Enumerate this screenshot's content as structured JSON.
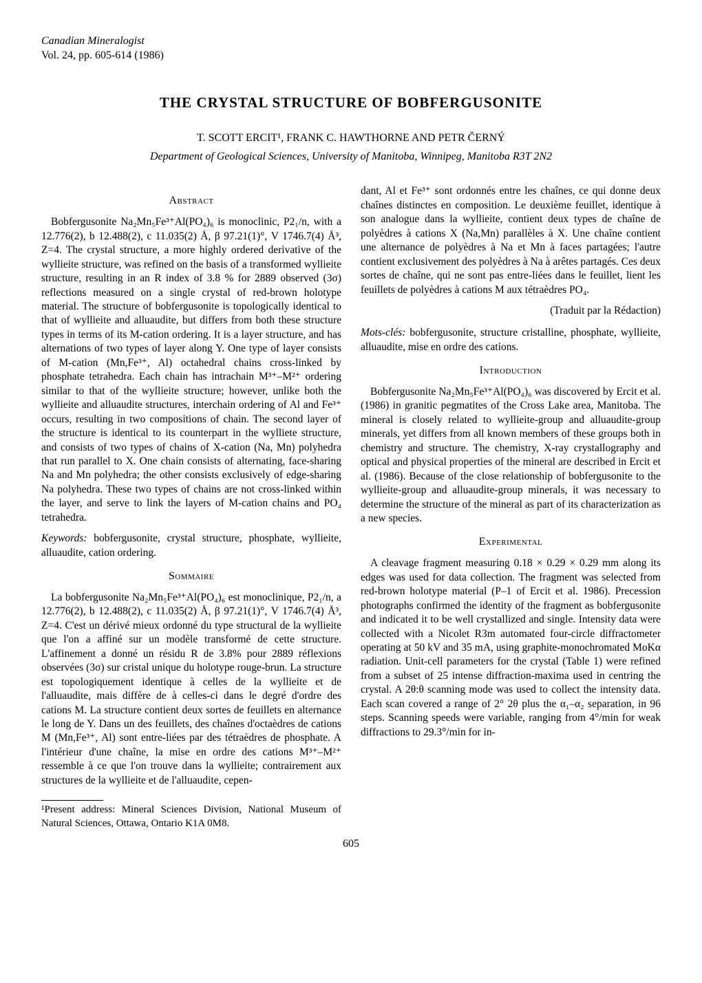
{
  "header": {
    "journal": "Canadian Mineralogist",
    "volume": "Vol. 24, pp. 605-614 (1986)"
  },
  "title": "THE CRYSTAL STRUCTURE OF BOBFERGUSONITE",
  "authors": "T. SCOTT ERCIT¹, FRANK C. HAWTHORNE AND PETR ČERNÝ",
  "affiliation": "Department of Geological Sciences, University of Manitoba, Winnipeg, Manitoba R3T 2N2",
  "left": {
    "abstract_head": "Abstract",
    "abstract_body": "Bobfergusonite Na₂Mn₅Fe³⁺Al(PO₄)₆ is monoclinic, P2₁/n, with a 12.776(2), b 12.488(2), c 11.035(2) Å, β 97.21(1)°, V 1746.7(4) Å³, Z=4. The crystal structure, a more highly ordered derivative of the wyllieite structure, was refined on the basis of a transformed wyllieite structure, resulting in an R index of 3.8 % for 2889 observed (3σ) reflections measured on a single crystal of red-brown holotype material. The structure of bobfergusonite is topologically identical to that of wyllieite and alluaudite, but differs from both these structure types in terms of its M-cation ordering. It is a layer structure, and has alternations of two types of layer along Y. One type of layer consists of M-cation (Mn,Fe³⁺, Al) octahedral chains cross-linked by phosphate tetrahedra. Each chain has intrachain M³⁺–M²⁺ ordering similar to that of the wyllieite structure; however, unlike both the wyllieite and alluaudite structures, interchain ordering of Al and Fe³⁺ occurs, resulting in two compositions of chain. The second layer of the structure is identical to its counterpart in the wylliete structure, and consists of two types of chains of X-cation (Na, Mn) polyhedra that run parallel to X. One chain consists of alternating, face-sharing Na and Mn polyhedra; the other consists exclusively of edge-sharing Na polyhedra. These two types of chains are not cross-linked within the layer, and serve to link the layers of M-cation chains and PO₄ tetrahedra.",
    "keywords_label": "Keywords:",
    "keywords_text": " bobfergusonite, crystal structure, phosphate, wyllieite, alluaudite, cation ordering.",
    "sommaire_head": "Sommaire",
    "sommaire_body": "La bobfergusonite Na₂Mn₅Fe³⁺Al(PO₄)₆ est monoclinique, P2₁/n, a 12.776(2), b 12.488(2), c 11.035(2) Å, β 97.21(1)°, V 1746.7(4) Å³, Z=4. C'est un dérivé mieux ordonné du type structural de la wyllieite que l'on a affiné sur un modèle transformé de cette structure. L'affinement a donné un résidu R de 3.8% pour 2889 réflexions observées (3σ) sur cristal unique du holotype rouge-brun. La structure est topologiquement identique à celles de la wyllieite et de l'alluaudite, mais diffère de à celles-ci dans le degré d'ordre des cations M. La structure contient deux sortes de feuillets en alternance le long de Y. Dans un des feuillets, des chaînes d'octaèdres de cations M (Mn,Fe³⁺, Al) sont entre-liées par des tétraèdres de phosphate. A l'intérieur d'une chaîne, la mise en ordre des cations M³⁺–M²⁺ ressemble à ce que l'on trouve dans la wyllieite; contrairement aux structures de la wyllieite et de l'alluaudite, cepen-",
    "footnote": "¹Present address: Mineral Sciences Division, National Museum of Natural Sciences, Ottawa, Ontario K1A 0M8."
  },
  "right": {
    "sommaire_cont": "dant, Al et Fe³⁺ sont ordonnés entre les chaînes, ce qui donne deux chaînes distinctes en composition. Le deuxième feuillet, identique à son analogue dans la wyllieite, contient deux types de chaîne de polyèdres à cations X (Na,Mn) parallèles à X. Une chaîne contient une alternance de polyèdres à Na et Mn à faces partagées; l'autre contient exclusivement des polyèdres à Na à arêtes partagés. Ces deux sortes de chaîne, qui ne sont pas entre-liées dans le feuillet, lient les feuillets de polyèdres à cations M aux tétraèdres PO₄.",
    "traduit": "(Traduit par la Rédaction)",
    "motscles_label": "Mots-clés:",
    "motscles_text": " bobfergusonite, structure cristalline, phosphate, wyllieite, alluaudite, mise en ordre des cations.",
    "intro_head": "Introduction",
    "intro_body": "Bobfergusonite Na₂Mn₅Fe³⁺Al(PO₄)₆ was discovered by Ercit et al. (1986) in granitic pegmatites of the Cross Lake area, Manitoba. The mineral is closely related to wyllieite-group and alluaudite-group minerals, yet differs from all known members of these groups both in chemistry and structure. The chemistry, X-ray crystallography and optical and physical properties of the mineral are described in Ercit et al. (1986). Because of the close relationship of bobfergusonite to the wyllieite-group and alluaudite-group minerals, it was necessary to determine the structure of the mineral as part of its characterization as a new species.",
    "exp_head": "Experimental",
    "exp_body": "A cleavage fragment measuring 0.18 × 0.29 × 0.29 mm along its edges was used for data collection. The fragment was selected from red-brown holotype material (P–1 of Ercit et al. 1986). Precession photographs confirmed the identity of the fragment as bobfergusonite and indicated it to be well crystallized and single. Intensity data were collected with a Nicolet R3m automated four-circle diffractometer operating at 50 kV and 35 mA, using graphite-monochromated MoKα radiation. Unit-cell parameters for the crystal (Table 1) were refined from a subset of 25 intense diffraction-maxima used in centring the crystal. A 2θ:θ scanning mode was used to collect the intensity data. Each scan covered a range of 2° 2θ plus the α₁–α₂ separation, in 96 steps. Scanning speeds were variable, ranging from 4°/min for weak diffractions to 29.3°/min for in-"
  },
  "page_number": "605"
}
